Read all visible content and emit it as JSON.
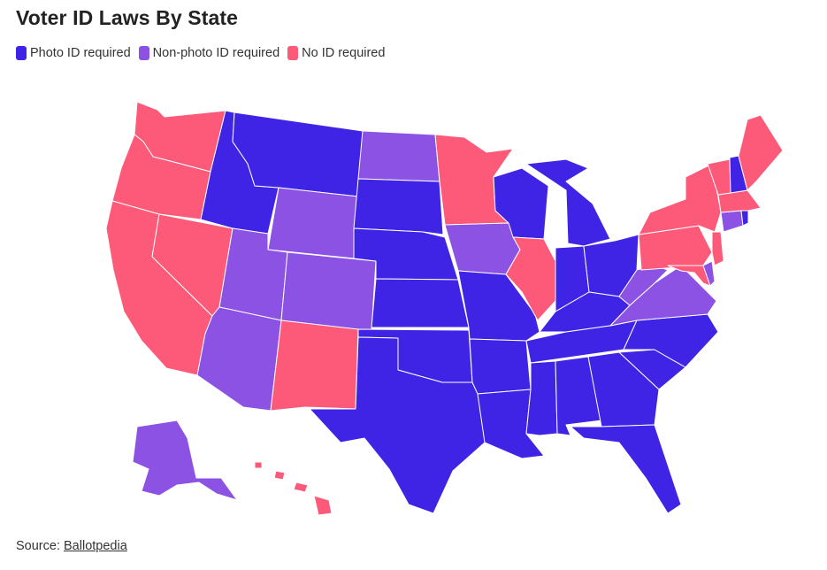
{
  "title": "Voter ID Laws By State",
  "legend": [
    {
      "key": "photo",
      "label": "Photo ID required",
      "color": "#3f24e6"
    },
    {
      "key": "nonphoto",
      "label": "Non-photo ID required",
      "color": "#8b52e3"
    },
    {
      "key": "none",
      "label": "No ID required",
      "color": "#fd5a79"
    }
  ],
  "source": {
    "prefix": "Source:",
    "link_text": "Ballotpedia"
  },
  "states": {
    "WA": "none",
    "OR": "none",
    "CA": "none",
    "NV": "none",
    "NM": "none",
    "MN": "none",
    "IL": "none",
    "PA": "none",
    "NY": "none",
    "VT": "none",
    "ME": "none",
    "MA": "none",
    "NJ": "none",
    "MD": "none",
    "HI": "none",
    "ID": "photo",
    "MT": "photo",
    "SD": "photo",
    "NE": "photo",
    "KS": "photo",
    "OK": "photo",
    "TX": "photo",
    "MO": "photo",
    "AR": "photo",
    "LA": "photo",
    "WI": "photo",
    "MI": "photo",
    "IN": "photo",
    "OH": "photo",
    "KY": "photo",
    "TN": "photo",
    "MS": "photo",
    "AL": "photo",
    "GA": "photo",
    "FL": "photo",
    "SC": "photo",
    "NC": "photo",
    "NH": "photo",
    "RI": "photo",
    "WY": "nonphoto",
    "UT": "nonphoto",
    "CO": "nonphoto",
    "AZ": "nonphoto",
    "ND": "nonphoto",
    "IA": "nonphoto",
    "WV": "nonphoto",
    "VA": "nonphoto",
    "CT": "nonphoto",
    "DE": "nonphoto",
    "AK": "nonphoto"
  }
}
